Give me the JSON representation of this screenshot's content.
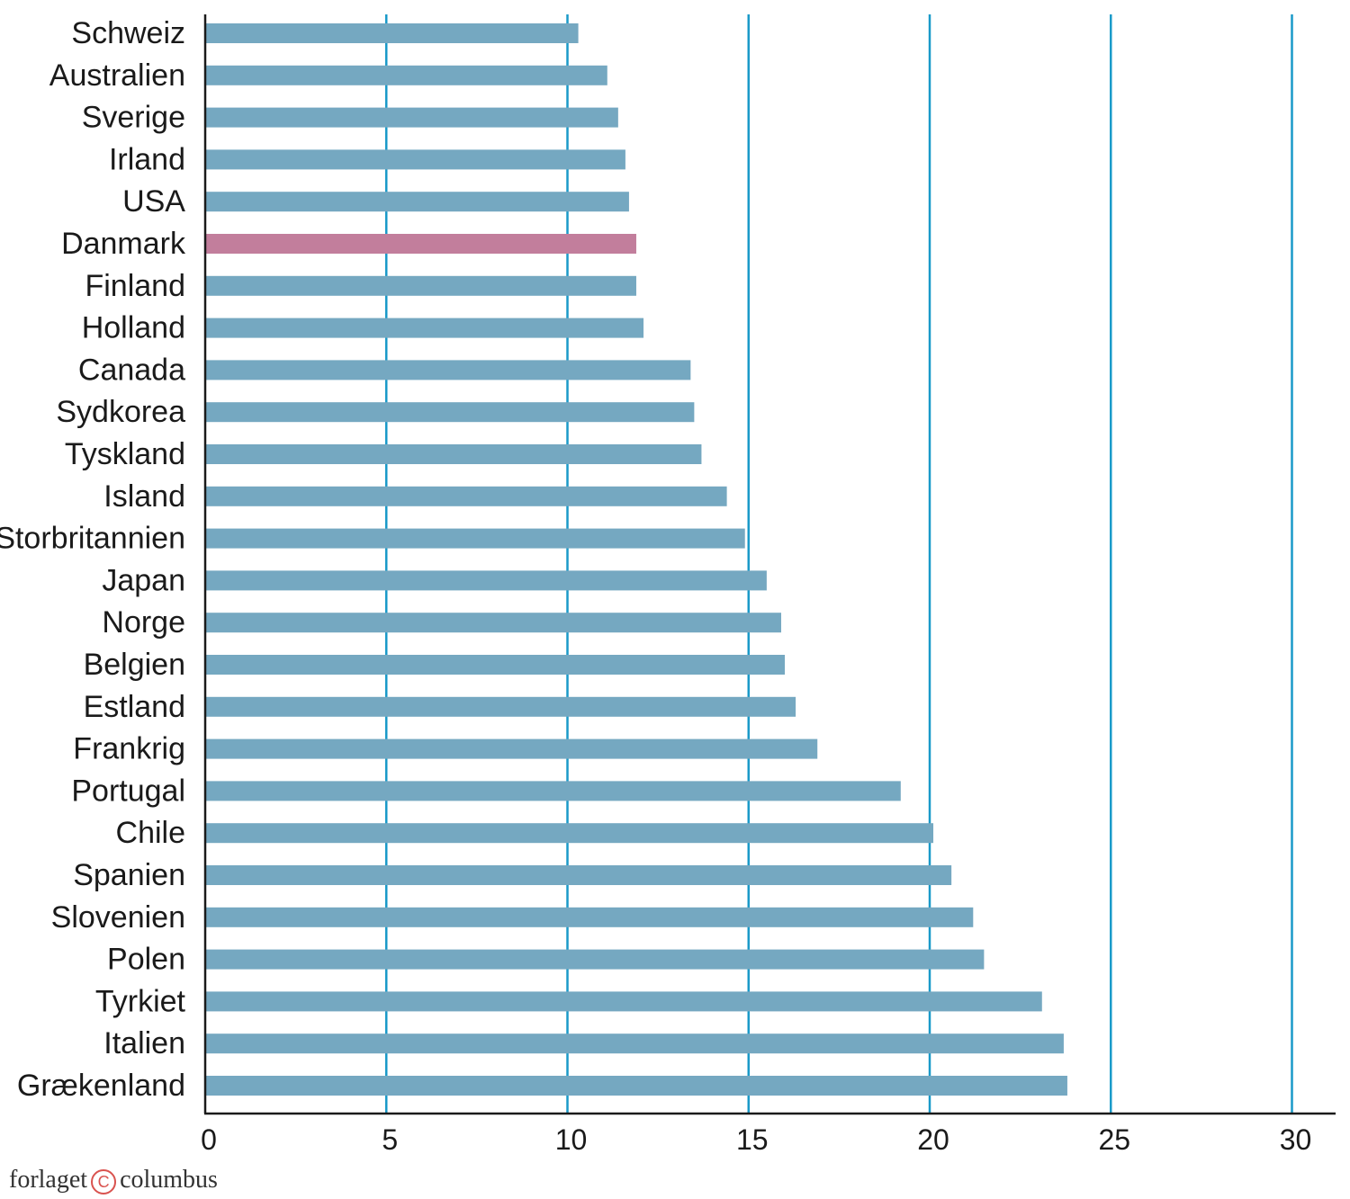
{
  "chart_data": {
    "type": "bar",
    "orientation": "horizontal",
    "title": "",
    "xlabel": "",
    "ylabel": "",
    "xlim": [
      0,
      30
    ],
    "xticks": [
      0,
      5,
      10,
      15,
      20,
      25,
      30
    ],
    "grid": "vertical",
    "categories": [
      "Schweiz",
      "Australien",
      "Sverige",
      "Irland",
      "USA",
      "Danmark",
      "Finland",
      "Holland",
      "Canada",
      "Sydkorea",
      "Tyskland",
      "Island",
      "Storbritannien",
      "Japan",
      "Norge",
      "Belgien",
      "Estland",
      "Frankrig",
      "Portugal",
      "Chile",
      "Spanien",
      "Slovenien",
      "Polen",
      "Tyrkiet",
      "Italien",
      "Grækenland"
    ],
    "values": [
      10.3,
      11.1,
      11.4,
      11.6,
      11.7,
      11.9,
      11.9,
      12.1,
      13.4,
      13.5,
      13.7,
      14.4,
      14.9,
      15.5,
      15.9,
      16.0,
      16.3,
      16.9,
      19.2,
      20.1,
      20.6,
      21.2,
      21.5,
      23.1,
      23.7,
      23.8
    ],
    "highlight_category": "Danmark",
    "colors": {
      "bar": "#75a8c1",
      "highlight": "#c27e9c",
      "grid": "#1a9ac9",
      "axis": "#1a1a1a"
    }
  },
  "footer": {
    "brand_left": "forlaget",
    "copyright_symbol": "C",
    "brand_right": "columbus"
  }
}
